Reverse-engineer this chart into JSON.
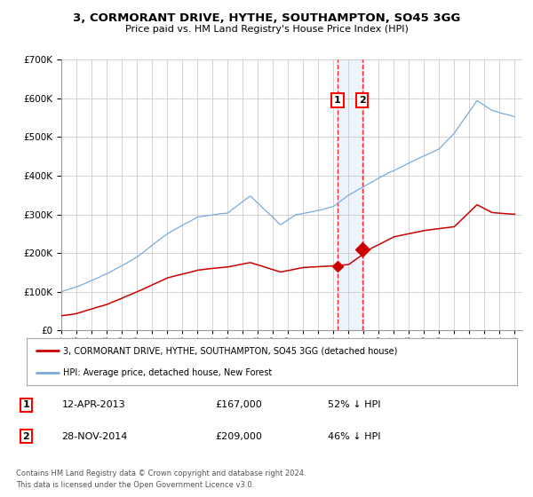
{
  "title": "3, CORMORANT DRIVE, HYTHE, SOUTHAMPTON, SO45 3GG",
  "subtitle": "Price paid vs. HM Land Registry's House Price Index (HPI)",
  "legend_label_red": "3, CORMORANT DRIVE, HYTHE, SOUTHAMPTON, SO45 3GG (detached house)",
  "legend_label_blue": "HPI: Average price, detached house, New Forest",
  "footer1": "Contains HM Land Registry data © Crown copyright and database right 2024.",
  "footer2": "This data is licensed under the Open Government Licence v3.0.",
  "transaction1_label": "1",
  "transaction1_date": "12-APR-2013",
  "transaction1_price": "£167,000",
  "transaction1_hpi": "52% ↓ HPI",
  "transaction2_label": "2",
  "transaction2_date": "28-NOV-2014",
  "transaction2_price": "£209,000",
  "transaction2_hpi": "46% ↓ HPI",
  "transaction1_x": 2013.28,
  "transaction2_x": 2014.91,
  "transaction1_y": 167000,
  "transaction2_y": 209000,
  "ylim": [
    0,
    700000
  ],
  "xlim_start": 1995,
  "xlim_end": 2025.5,
  "bg_color": "#ffffff",
  "grid_color": "#cccccc",
  "red_color": "#cc0000",
  "blue_color": "#7aaadd",
  "highlight_color": "#ddeeff"
}
